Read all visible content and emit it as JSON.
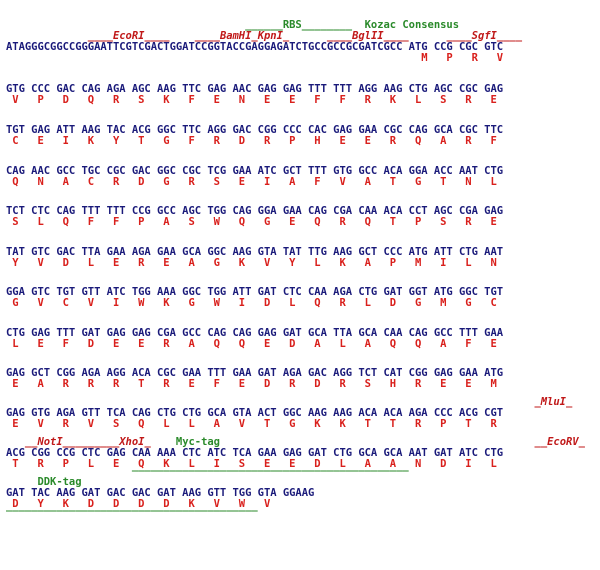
{
  "annotations_top": {
    "rbs": "RBS",
    "kozac": "Kozac Consensus",
    "ecori": "EcoRI",
    "bamhi": "BamHI",
    "kpni": "KpnI",
    "bglii": "BglII",
    "sgfi": "SgfI"
  },
  "seq_header": "ATAGGGCGGCCGGGAATTCGTCGACTGGATCCGGTACCGAGGAGATCTGCCGCCGCGATCGCC ATG CCG CGC GTC",
  "aa_header": "M   P   R   V",
  "rows": [
    {
      "dna": "GTG CCC GAC CAG AGA AGC AAG TTC GAG AAC GAG GAG TTT TTT AGG AAG CTG AGC CGC GAG",
      "aa": " V   P   D   Q   R   S   K   F   E   N   E   E   F   F   R   K   L   S   R   E"
    },
    {
      "dna": "TGT GAG ATT AAG TAC ACG GGC TTC AGG GAC CGG CCC CAC GAG GAA CGC CAG GCA CGC TTC",
      "aa": " C   E   I   K   Y   T   G   F   R   D   R   P   H   E   E   R   Q   A   R   F"
    },
    {
      "dna": "CAG AAC GCC TGC CGC GAC GGC CGC TCG GAA ATC GCT TTT GTG GCC ACA GGA ACC AAT CTG",
      "aa": " Q   N   A   C   R   D   G   R   S   E   I   A   F   V   A   T   G   T   N   L"
    },
    {
      "dna": "TCT CTC CAG TTT TTT CCG GCC AGC TGG CAG GGA GAA CAG CGA CAA ACA CCT AGC CGA GAG",
      "aa": " S   L   Q   F   F   P   A   S   W   Q   G   E   Q   R   Q   T   P   S   R   E"
    },
    {
      "dna": "TAT GTC GAC TTA GAA AGA GAA GCA GGC AAG GTA TAT TTG AAG GCT CCC ATG ATT CTG AAT",
      "aa": " Y   V   D   L   E   R   E   A   G   K   V   Y   L   K   A   P   M   I   L   N"
    },
    {
      "dna": "GGA GTC TGT GTT ATC TGG AAA GGC TGG ATT GAT CTC CAA AGA CTG GAT GGT ATG GGC TGT",
      "aa": " G   V   C   V   I   W   K   G   W   I   D   L   Q   R   L   D   G   M   G   C"
    },
    {
      "dna": "CTG GAG TTT GAT GAG GAG CGA GCC CAG CAG GAG GAT GCA TTA GCA CAA CAG GCC TTT GAA",
      "aa": " L   E   F   D   E   E   R   A   Q   Q   E   D   A   L   A   Q   Q   A   F   E"
    },
    {
      "dna": "GAG GCT CGG AGA AGG ACA CGC GAA TTT GAA GAT AGA GAC AGG TCT CAT CGG GAG GAA ATG",
      "aa": " E   A   R   R   R   T   R   E   F   E   D   R   D   R   S   H   R   E   E   M"
    },
    {
      "dna": "GAG GTG AGA GTT TCA CAG CTG CTG GCA GTA ACT GGC AAG AAG ACA ACA AGA CCC ACG CGT",
      "aa": " E   V   R   V   S   Q   L   L   A   V   T   G   K   K   T   T   R   P   T   R"
    },
    {
      "dna": "ACG CGG CCG CTC GAG CAA AAA CTC ATC TCA GAA GAG GAT CTG GCA GCA AAT GAT ATC CTG",
      "aa": " T   R   P   L   E   Q   K   L   I   S   E   E   D   L   A   A   N   D   I   L"
    },
    {
      "dna": "GAT TAC AAG GAT GAC GAC GAT AAG GTT TGG GTA GGAAG",
      "aa": " D   Y   K   D   D   D   D   K   V   W   V"
    }
  ],
  "annotations_inline": {
    "mlui": "MluI",
    "noti": "NotI",
    "xhoi": "XhoI",
    "myc": "Myc-tag",
    "ecorv": "EcoRV",
    "ddk": "DDK-tag"
  }
}
